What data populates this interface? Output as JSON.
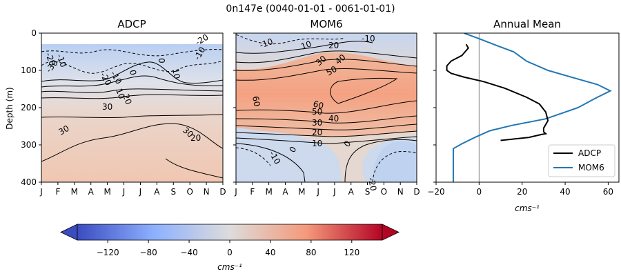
{
  "figure": {
    "suptitle": "0n147e (0040-01-01 - 0061-01-01)",
    "depth_label": "Depth (m)",
    "units_label": "cms⁻¹",
    "colormap": "coolwarm",
    "colorbar_range": [
      -150,
      150
    ],
    "colorbar_ticks": [
      "−120",
      "−80",
      "−40",
      "0",
      "40",
      "80",
      "120"
    ],
    "colorbar_tick_values": [
      -120,
      -80,
      -40,
      0,
      40,
      80,
      120
    ]
  },
  "chart_data": [
    {
      "type": "contour",
      "title": "ADCP",
      "xlabel": "",
      "ylabel": "Depth (m)",
      "x_ticks": [
        "J",
        "F",
        "M",
        "A",
        "M",
        "J",
        "J",
        "A",
        "S",
        "O",
        "N",
        "D"
      ],
      "y_ticks": [
        "0",
        "100",
        "200",
        "300",
        "400"
      ],
      "ylim": [
        400,
        0
      ],
      "data_depth_range": [
        30,
        285
      ],
      "contour_labels": [
        "-20",
        "-10",
        "-30",
        "-20",
        "-10",
        "0",
        "10",
        "20",
        "-20",
        "-10",
        "0",
        "10",
        "30",
        "30",
        "30",
        "20"
      ],
      "colors": {
        "surface": "#b9cff2",
        "core": "#e8d3c8",
        "deep": "#f2c3aa"
      }
    },
    {
      "type": "contour",
      "title": "MOM6",
      "xlabel": "",
      "x_ticks": [
        "J",
        "F",
        "M",
        "A",
        "M",
        "J",
        "J",
        "A",
        "S",
        "O",
        "N",
        "D"
      ],
      "ylim": [
        400,
        0
      ],
      "contour_labels": [
        "-10",
        "-10",
        "10",
        "20",
        "30",
        "40",
        "50",
        "60",
        "60",
        "50",
        "40",
        "30",
        "20",
        "10",
        "0",
        "-10",
        "0",
        "-20"
      ],
      "colors": {
        "surface": "#c5d5ee",
        "core": "#f1a788",
        "deep": "#bfd2f0"
      }
    },
    {
      "type": "line",
      "title": "Annual Mean",
      "xlabel": "cms⁻¹",
      "xlim": [
        -20,
        65
      ],
      "ylim": [
        400,
        0
      ],
      "x_ticks": [
        "−20",
        "0",
        "20",
        "40",
        "60"
      ],
      "x_tick_values": [
        -20,
        0,
        20,
        40,
        60
      ],
      "legend": "lower-right",
      "series": [
        {
          "name": "ADCP",
          "color": "#000000",
          "points": [
            [
              -6,
              30
            ],
            [
              -5,
              40
            ],
            [
              -8,
              60
            ],
            [
              -13,
              75
            ],
            [
              -15,
              88
            ],
            [
              -15,
              100
            ],
            [
              -13,
              108
            ],
            [
              -7,
              118
            ],
            [
              2,
              130
            ],
            [
              12,
              148
            ],
            [
              22,
              172
            ],
            [
              28,
              190
            ],
            [
              31,
              212
            ],
            [
              32,
              235
            ],
            [
              30,
              255
            ],
            [
              30,
              265
            ],
            [
              31,
              270
            ],
            [
              29,
              272
            ],
            [
              23,
              280
            ],
            [
              10,
              288
            ]
          ]
        },
        {
          "name": "MOM6",
          "color": "#1f77b4",
          "points": [
            [
              -7,
              0
            ],
            [
              0,
              15
            ],
            [
              9,
              35
            ],
            [
              16,
              50
            ],
            [
              22,
              75
            ],
            [
              32,
              100
            ],
            [
              44,
              120
            ],
            [
              55,
              138
            ],
            [
              61,
              155
            ],
            [
              54,
              175
            ],
            [
              46,
              200
            ],
            [
              31,
              230
            ],
            [
              15,
              248
            ],
            [
              5,
              262
            ],
            [
              -2,
              280
            ],
            [
              -8,
              297
            ],
            [
              -12,
              310
            ],
            [
              -12,
              400
            ]
          ]
        }
      ]
    }
  ]
}
